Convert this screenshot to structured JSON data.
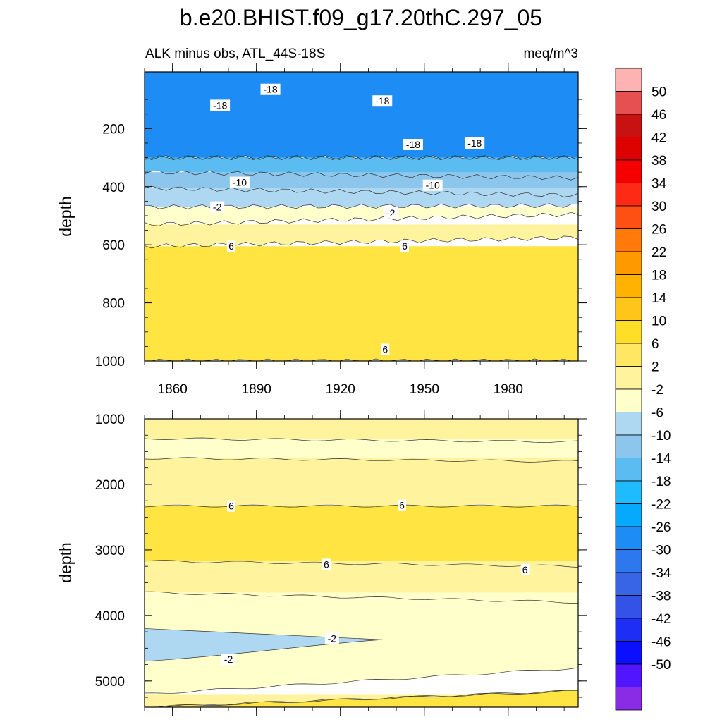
{
  "chart_data": {
    "type": "contour",
    "title": "b.e20.BHIST.f09_g17.20thC.297_05",
    "subtitle_left": "ALK minus obs, ATL_44S-18S",
    "subtitle_right": "meq/m^3",
    "xlim": [
      1850,
      2005
    ],
    "x_ticks": [
      1860,
      1890,
      1920,
      1950,
      1980
    ],
    "panels": [
      {
        "name": "upper",
        "ylabel": "depth",
        "ylim": [
          1000,
          5
        ],
        "y_ticks": [
          200,
          400,
          600,
          800,
          1000
        ],
        "contour_bands": [
          {
            "range": "-22..-18",
            "top_depth": 5,
            "bottom_depth_start": 300,
            "bottom_depth_end": 300
          },
          {
            "range": "-18..-14",
            "top_depth": 300,
            "bottom_depth_start": 300,
            "bottom_depth_end": 300
          },
          {
            "range": "-14..-10",
            "top_depth": 300,
            "bottom_depth_start": 350,
            "bottom_depth_end": 370
          },
          {
            "range": "-10..-6",
            "top_depth": 350,
            "bottom_depth_start": 405,
            "bottom_depth_end": 430
          },
          {
            "range": "-6..-2",
            "top_depth": 405,
            "bottom_depth_start": 470,
            "bottom_depth_end": 465
          },
          {
            "range": "-2..2",
            "top_depth": 470,
            "bottom_depth_start": 530,
            "bottom_depth_end": 495
          },
          {
            "range": "2..6",
            "top_depth": 530,
            "bottom_depth_start": 605,
            "bottom_depth_end": 575
          },
          {
            "range": "6..10",
            "top_depth": 605,
            "bottom_depth_start": 1000,
            "bottom_depth_end": 1000
          }
        ],
        "contour_labels": [
          {
            "text": "-18",
            "year": 1877,
            "depth": 120
          },
          {
            "text": "-18",
            "year": 1895,
            "depth": 65
          },
          {
            "text": "-18",
            "year": 1935,
            "depth": 105
          },
          {
            "text": "-18",
            "year": 1946,
            "depth": 255
          },
          {
            "text": "-18",
            "year": 1968,
            "depth": 250
          },
          {
            "text": "-10",
            "year": 1884,
            "depth": 385
          },
          {
            "text": "-10",
            "year": 1953,
            "depth": 395
          },
          {
            "text": "-2",
            "year": 1876,
            "depth": 470
          },
          {
            "text": "-2",
            "year": 1938,
            "depth": 490
          },
          {
            "text": "6",
            "year": 1881,
            "depth": 605
          },
          {
            "text": "6",
            "year": 1943,
            "depth": 605
          },
          {
            "text": "6",
            "year": 1936,
            "depth": 960
          }
        ]
      },
      {
        "name": "lower",
        "ylabel": "depth",
        "ylim": [
          5400,
          1000
        ],
        "y_ticks": [
          1000,
          2000,
          3000,
          4000,
          5000
        ],
        "contour_bands": [
          {
            "range": "2..6",
            "top_depth": 1000,
            "bottom_depth_start": 1300,
            "bottom_depth_end": 1350
          },
          {
            "range": "-2..2",
            "top_depth": 1300,
            "bottom_depth_start": 1600,
            "bottom_depth_end": 1650
          },
          {
            "range": "2..6",
            "top_depth": 1600,
            "bottom_depth_start": 2330,
            "bottom_depth_end": 2330
          },
          {
            "range": "6..10",
            "top_depth": 2330,
            "bottom_depth_start": 3170,
            "bottom_depth_end": 3250
          },
          {
            "range": "2..6",
            "top_depth": 3170,
            "bottom_depth_start": 3650,
            "bottom_depth_end": 3800
          },
          {
            "range": "-2..2",
            "top_depth": 3650,
            "bottom_depth_start": 5200,
            "bottom_depth_end": 4800
          },
          {
            "range": "-6..-2",
            "top_depth": 4200,
            "bottom_depth_start": 4700,
            "bottom_depth_end": 4350
          },
          {
            "range": "2..6",
            "top_depth": 5200,
            "bottom_depth_start": 5400,
            "bottom_depth_end": 5150
          },
          {
            "range": "6..10",
            "top_depth": 5400,
            "bottom_depth_start": 5400,
            "bottom_depth_end": 5150
          }
        ],
        "contour_labels": [
          {
            "text": "6",
            "year": 1881,
            "depth": 2330
          },
          {
            "text": "6",
            "year": 1942,
            "depth": 2320
          },
          {
            "text": "6",
            "year": 1915,
            "depth": 3220
          },
          {
            "text": "6",
            "year": 1986,
            "depth": 3300
          },
          {
            "text": "-2",
            "year": 1917,
            "depth": 4350
          },
          {
            "text": "-2",
            "year": 1880,
            "depth": 4670
          }
        ]
      }
    ],
    "colorbar": {
      "labels": [
        "50",
        "46",
        "42",
        "38",
        "34",
        "30",
        "26",
        "22",
        "18",
        "14",
        "10",
        "6",
        "2",
        "-2",
        "-6",
        "-10",
        "-14",
        "-18",
        "-22",
        "-26",
        "-30",
        "-34",
        "-38",
        "-42",
        "-46",
        "-50"
      ],
      "colors": [
        "#feb3b3",
        "#e65050",
        "#c81212",
        "#dc0000",
        "#f50000",
        "#ff2a16",
        "#ff5014",
        "#ff7a0a",
        "#ff9900",
        "#ffb200",
        "#ffc619",
        "#ffde28",
        "#ffe763",
        "#fff39e",
        "#ffffcc",
        "#aed8f2",
        "#8cc6ec",
        "#5bbcf2",
        "#1ebbff",
        "#07a9fe",
        "#1e8cf5",
        "#2e78ef",
        "#3865e6",
        "#3452e5",
        "#1d2ff5",
        "#0a0fff",
        "#5016ff",
        "#8a2ce6"
      ]
    }
  }
}
